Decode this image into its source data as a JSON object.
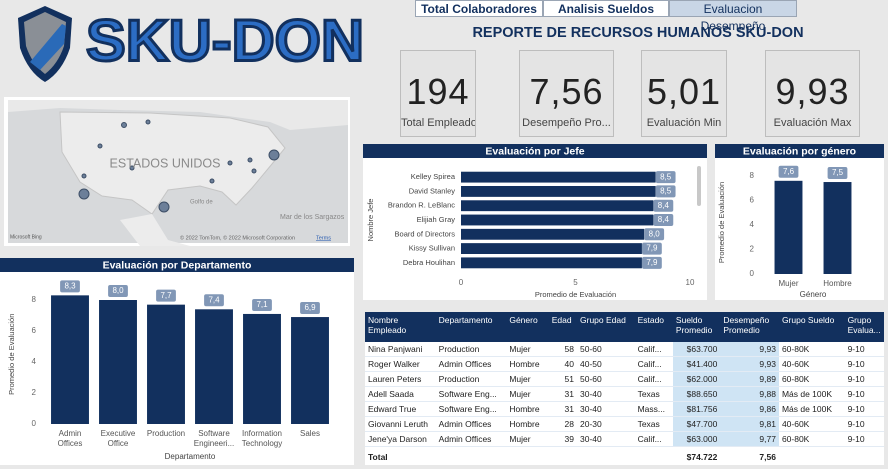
{
  "logo": {
    "text": "SKU-DON"
  },
  "tabs": [
    "Total Colaboradores",
    "Analisis Sueldos",
    "Evaluacion Desempeño"
  ],
  "title": "REPORTE DE RECURSOS HUMANOS SKU-DON",
  "kpis": [
    {
      "value": "194",
      "label": "Total Empleados"
    },
    {
      "value": "7,56",
      "label": "Desempeño Pro..."
    },
    {
      "value": "5,01",
      "label": "Evaluación Min"
    },
    {
      "value": "9,93",
      "label": "Evaluación Max"
    }
  ],
  "map": {
    "country": "ESTADOS UNIDOS",
    "gulf": "Golfo de",
    "sea": "Mar de los Sargazos",
    "attribution": "© 2022 TomTom, © 2022 Microsoft Corporation",
    "terms": "Terms",
    "provider": "Microsoft Bing"
  },
  "chart_data": [
    {
      "type": "hbar",
      "title": "Evaluación por Jefe",
      "x_label": "Promedio de Evaluación",
      "y_label": "Nombre Jefe",
      "categories": [
        "Kelley Spirea",
        "David Stanley",
        "Brandon R. LeBlanc",
        "Elijiah Gray",
        "Board of Directors",
        "Kissy Sullivan",
        "Debra Houlihan"
      ],
      "values": [
        8.5,
        8.5,
        8.4,
        8.4,
        8.0,
        7.9,
        7.9
      ],
      "value_labels": [
        "8,5",
        "8,5",
        "8,4",
        "8,4",
        "8,0",
        "7,9",
        "7,9"
      ],
      "color": "#12305e",
      "xlim": [
        0,
        10
      ],
      "xticks": [
        0,
        5,
        10
      ]
    },
    {
      "type": "bar",
      "title": "Evaluación por género",
      "x_label": "Género",
      "y_label": "Promedio de Evaluación",
      "categories": [
        "Mujer",
        "Hombre"
      ],
      "values": [
        7.6,
        7.5
      ],
      "value_labels": [
        "7,6",
        "7,5"
      ],
      "color": "#12305e",
      "ylim": [
        0,
        8.4
      ],
      "yticks": [
        0,
        2,
        4,
        6,
        8
      ]
    },
    {
      "type": "bar",
      "title": "Evaluación por Departamento",
      "x_label": "Departamento",
      "y_label": "Promedio de Evaluación",
      "categories": [
        "Admin Offices",
        "Executive Office",
        "Production",
        "Software Engineeri...",
        "Information Technology",
        "Sales"
      ],
      "values": [
        8.3,
        8.0,
        7.7,
        7.4,
        7.1,
        6.9
      ],
      "value_labels": [
        "8,3",
        "8,0",
        "7,7",
        "7,4",
        "7,1",
        "6,9"
      ],
      "color": "#12305e",
      "ylim": [
        0,
        9
      ],
      "yticks": [
        0,
        2,
        4,
        6,
        8
      ]
    }
  ],
  "table": {
    "columns": [
      "Nombre Empleado",
      "Departamento",
      "Género",
      "Edad",
      "Grupo Edad",
      "Estado",
      "Sueldo Promedio",
      "Desempeño Promedio",
      "Grupo Sueldo",
      "Grupo Evalua..."
    ],
    "rows": [
      [
        "Nina Panjwani",
        "Production",
        "Mujer",
        58,
        "50-60",
        "Calif...",
        "$63.700",
        "9,93",
        "60-80K",
        "9-10"
      ],
      [
        "Roger Walker",
        "Admin Offices",
        "Hombre",
        40,
        "40-50",
        "Calif...",
        "$41.400",
        "9,93",
        "40-60K",
        "9-10"
      ],
      [
        "Lauren Peters",
        "Production",
        "Mujer",
        51,
        "50-60",
        "Calif...",
        "$62.000",
        "9,89",
        "60-80K",
        "9-10"
      ],
      [
        "Adell Saada",
        "Software Eng...",
        "Mujer",
        31,
        "30-40",
        "Texas",
        "$88.650",
        "9,88",
        "Más de 100K",
        "9-10"
      ],
      [
        "Edward True",
        "Software Eng...",
        "Hombre",
        31,
        "30-40",
        "Mass...",
        "$81.756",
        "9,86",
        "Más de 100K",
        "9-10"
      ],
      [
        "Giovanni Leruth",
        "Admin Offices",
        "Hombre",
        28,
        "20-30",
        "Texas",
        "$47.700",
        "9,81",
        "40-60K",
        "9-10"
      ],
      [
        "Jene'ya Darson",
        "Admin Offices",
        "Mujer",
        39,
        "30-40",
        "Calif...",
        "$63.000",
        "9,77",
        "60-80K",
        "9-10"
      ]
    ],
    "total": [
      "Total",
      "$74.722",
      "7,56"
    ]
  }
}
